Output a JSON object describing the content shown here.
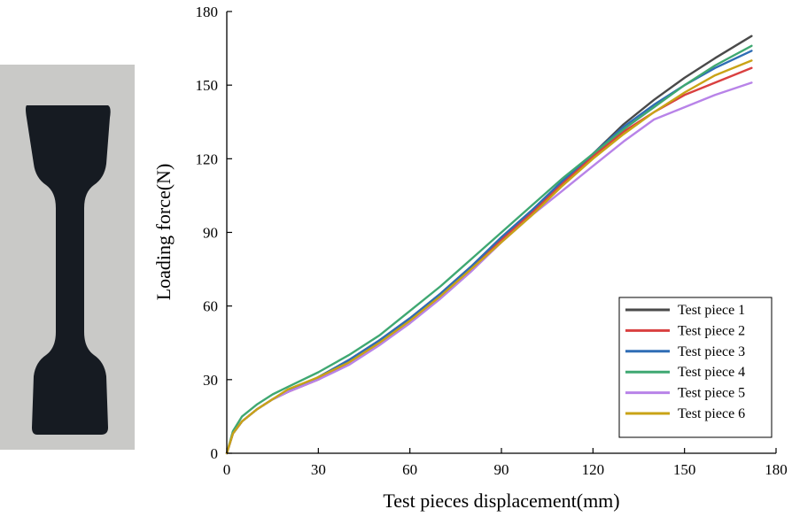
{
  "photo": {
    "subject": "tensile-test-specimen"
  },
  "chart_data": {
    "type": "line",
    "title": "",
    "xlabel": "Test pieces displacement(mm)",
    "ylabel": "Loading force(N)",
    "xlim": [
      0,
      180
    ],
    "ylim": [
      0,
      180
    ],
    "xticks": [
      "0",
      "30",
      "60",
      "90",
      "120",
      "150",
      "180"
    ],
    "yticks": [
      "0",
      "30",
      "60",
      "90",
      "120",
      "150",
      "180"
    ],
    "grid": false,
    "legend_position": "bottom-right",
    "x": [
      0,
      2,
      5,
      10,
      15,
      20,
      30,
      40,
      50,
      60,
      70,
      80,
      90,
      100,
      110,
      120,
      130,
      140,
      150,
      160,
      172
    ],
    "series": [
      {
        "name": "Test piece 1",
        "color": "#4a4a4a",
        "values": [
          0,
          8,
          13,
          18,
          22,
          25,
          31,
          38,
          46,
          55,
          65,
          76,
          88,
          99,
          110,
          122,
          134,
          144,
          153,
          161,
          170
        ]
      },
      {
        "name": "Test piece 2",
        "color": "#d94040",
        "values": [
          0,
          8,
          13,
          18,
          22,
          25,
          30,
          37,
          45,
          54,
          64,
          75,
          87,
          98,
          110,
          121,
          131,
          139,
          146,
          151,
          157
        ]
      },
      {
        "name": "Test piece 3",
        "color": "#2f6db5",
        "values": [
          0,
          8,
          13,
          18,
          22,
          25,
          31,
          38,
          46,
          55,
          65,
          76,
          88,
          99,
          111,
          122,
          133,
          142,
          150,
          157,
          164
        ]
      },
      {
        "name": "Test piece 4",
        "color": "#3fa872",
        "values": [
          0,
          9,
          15,
          20,
          24,
          27,
          33,
          40,
          48,
          58,
          68,
          79,
          90,
          101,
          112,
          122,
          132,
          141,
          150,
          158,
          166
        ]
      },
      {
        "name": "Test piece 5",
        "color": "#b883e8",
        "values": [
          0,
          8,
          13,
          18,
          22,
          25,
          30,
          36,
          44,
          53,
          63,
          74,
          86,
          97,
          107,
          117,
          127,
          136,
          141,
          146,
          151
        ]
      },
      {
        "name": "Test piece 6",
        "color": "#c9a316",
        "values": [
          0,
          8,
          13,
          18,
          22,
          26,
          31,
          37,
          45,
          54,
          64,
          75,
          86,
          97,
          109,
          120,
          130,
          139,
          147,
          154,
          160
        ]
      }
    ]
  }
}
